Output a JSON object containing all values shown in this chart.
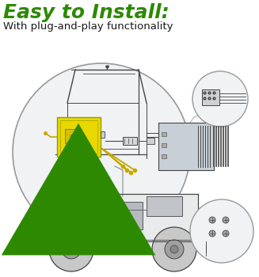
{
  "title": "Easy to Install:",
  "title_color": "#2d8a00",
  "subtitle": "With plug-and-play functionality",
  "subtitle_color": "#1a1a1a",
  "bg_color": "#ffffff",
  "title_fontsize": 18,
  "subtitle_fontsize": 9.5,
  "fig_width": 3.27,
  "fig_height": 3.5,
  "dpi": 100,
  "line_color": "#888888",
  "dark_line": "#444444",
  "yellow_color": "#e8d800",
  "green_arrow": "#2d8a00",
  "wire_yellow": "#c8a800",
  "circle_bg": "#f0f2f4",
  "circle_edge": "#999999"
}
